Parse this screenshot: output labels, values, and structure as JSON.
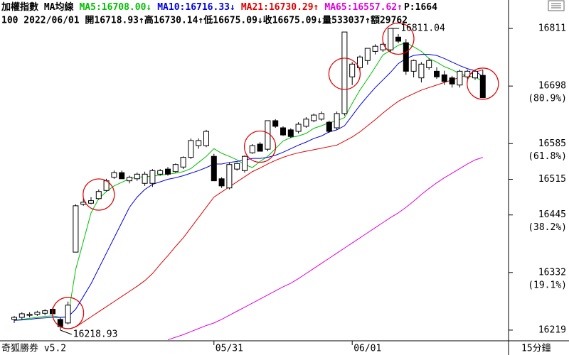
{
  "chart_data": {
    "type": "candlestick",
    "legend_title": "加權指數 MA均線",
    "header_extra": "P:1664",
    "quote_line": "100 2022/06/01 開16718.93↑高16730.14↑低16675.09↓收16675.09↓量533037↑額29762",
    "footer_left": "奇狐勝券 v5.2",
    "timeframe": "15分鐘",
    "categories": [
      null,
      null,
      null,
      null,
      null,
      null,
      null,
      null,
      null,
      null,
      null,
      null,
      null,
      null,
      null,
      null,
      null,
      null,
      null,
      null,
      null,
      null,
      null,
      null,
      null,
      null,
      "05/31",
      null,
      null,
      null,
      null,
      null,
      null,
      null,
      null,
      null,
      null,
      null,
      null,
      null,
      null,
      null,
      null,
      null,
      "06/01",
      null,
      null,
      null,
      null,
      null,
      null,
      null,
      null,
      null,
      null,
      null,
      null,
      null,
      null,
      null,
      null,
      null
    ],
    "open": [
      16240,
      16244,
      16248,
      16250,
      16252,
      16260,
      16240,
      16233,
      16372,
      16466,
      16468,
      16477,
      16493,
      16519,
      16528,
      16512,
      16516,
      16507,
      16507,
      16525,
      16535,
      16530,
      16539,
      16558,
      16581,
      16581,
      16560,
      16516,
      16498,
      16535,
      16532,
      16567,
      16584,
      16574,
      16630,
      16616,
      16612,
      16609,
      16619,
      16630,
      16633,
      16627,
      16616,
      16644,
      16716,
      16734,
      16748,
      16766,
      16769,
      16769,
      16794,
      16783,
      16727,
      16714,
      16734,
      16727,
      16720,
      16714,
      16700,
      16716,
      16714,
      16718.93
    ],
    "high": [
      16247,
      16254,
      16254,
      16257,
      16260,
      16263,
      16244,
      16275,
      16466,
      16477,
      16480,
      16495,
      16516,
      16532,
      16532,
      16522,
      16528,
      16530,
      16535,
      16535,
      16539,
      16546,
      16560,
      16595,
      16595,
      16612,
      16565,
      16519,
      16548,
      16548,
      16562,
      16584,
      16588,
      16630,
      16633,
      16619,
      16615,
      16627,
      16637,
      16644,
      16648,
      16630,
      16648,
      16804,
      16745,
      16758,
      16772,
      16780,
      16785,
      16811.04,
      16800,
      16790,
      16750,
      16745,
      16752,
      16735,
      16728,
      16718,
      16730,
      16730,
      16730,
      16730.14
    ],
    "low": [
      16233,
      16240,
      16244,
      16247,
      16248,
      16251,
      16218.93,
      16230,
      16372,
      16463,
      16466,
      16475,
      16491,
      16516,
      16516,
      16507,
      16512,
      16502,
      16500,
      16522,
      16522,
      16528,
      16535,
      16555,
      16575,
      16578,
      16512,
      16498,
      16495,
      16532,
      16528,
      16565,
      16570,
      16570,
      16616,
      16600,
      16596,
      16605,
      16616,
      16627,
      16630,
      16606,
      16612,
      16640,
      16700,
      16727,
      16740,
      16760,
      16765,
      16765,
      16782,
      16720,
      16715,
      16705,
      16730,
      16712,
      16700,
      16695,
      16695,
      16712,
      16710,
      16675.09
    ],
    "close": [
      16244,
      16251,
      16250,
      16254,
      16257,
      16251,
      16226,
      16268,
      16463,
      16470,
      16473,
      16491,
      16512,
      16528,
      16516,
      16519,
      16525,
      16525,
      16532,
      16532,
      16525,
      16544,
      16558,
      16591,
      16591,
      16609,
      16512,
      16502,
      16544,
      16546,
      16560,
      16581,
      16570,
      16630,
      16619,
      16602,
      16599,
      16623,
      16633,
      16641,
      16644,
      16609,
      16644,
      16804,
      16741,
      16755,
      16772,
      16776,
      16780,
      16811,
      16786,
      16727,
      16748,
      16741,
      16748,
      16716,
      16707,
      16702,
      16727,
      16727,
      16727,
      16675.09
    ],
    "up_color": "#ffffff",
    "down_color": "#000000",
    "series": [
      {
        "name": "MA5:16708.00↓",
        "color": "#00c000",
        "values": [
          16238,
          16240,
          16242,
          16244,
          16246,
          16247,
          16244,
          16245,
          16338,
          16393,
          16449,
          16477,
          16491,
          16502,
          16509,
          16516,
          16519,
          16520,
          16521,
          16523,
          16525,
          16527,
          16530,
          16536,
          16548,
          16560,
          16575,
          16566,
          16560,
          16553,
          16544,
          16538,
          16550,
          16560,
          16575,
          16590,
          16597,
          16600,
          16605,
          16615,
          16620,
          16626,
          16630,
          16636,
          16664,
          16690,
          16712,
          16735,
          16759,
          16768,
          16778,
          16783,
          16775,
          16766,
          16752,
          16745,
          16736,
          16730,
          16722,
          16718,
          16715,
          16708
        ]
      },
      {
        "name": "MA10:16716.33↓",
        "color": "#0000e0",
        "values": [
          16238,
          16239,
          16240,
          16242,
          16243,
          16244,
          16244,
          16245,
          16260,
          16285,
          16310,
          16340,
          16370,
          16400,
          16430,
          16460,
          16480,
          16495,
          16505,
          16510,
          16515,
          16518,
          16522,
          16527,
          16532,
          16538,
          16545,
          16545,
          16548,
          16550,
          16553,
          16556,
          16556,
          16558,
          16562,
          16568,
          16575,
          16582,
          16588,
          16595,
          16600,
          16608,
          16612,
          16620,
          16640,
          16660,
          16678,
          16695,
          16710,
          16725,
          16742,
          16752,
          16758,
          16760,
          16760,
          16758,
          16752,
          16745,
          16738,
          16732,
          16728,
          16716
        ]
      },
      {
        "name": "MA21:16730.29↑",
        "color": "#e00000",
        "values": [
          null,
          null,
          null,
          null,
          null,
          null,
          null,
          null,
          16225,
          16235,
          16245,
          16255,
          16265,
          16275,
          16285,
          16295,
          16305,
          16316,
          16330,
          16348,
          16365,
          16383,
          16400,
          16420,
          16440,
          16460,
          16480,
          16490,
          16500,
          16510,
          16520,
          16530,
          16537,
          16545,
          16552,
          16558,
          16563,
          16567,
          16570,
          16573,
          16576,
          16579,
          16582,
          16590,
          16598,
          16608,
          16620,
          16632,
          16645,
          16657,
          16668,
          16676,
          16683,
          16690,
          16695,
          16700,
          16705,
          16710,
          16715,
          16720,
          16725,
          16730
        ]
      },
      {
        "name": "MA65:16557.62↑",
        "color": "#e000e0",
        "values": [
          null,
          null,
          null,
          null,
          null,
          null,
          null,
          null,
          null,
          null,
          null,
          null,
          null,
          null,
          null,
          null,
          null,
          null,
          null,
          null,
          16200,
          16205,
          16210,
          16216,
          16222,
          16228,
          16233,
          16240,
          16248,
          16256,
          16264,
          16272,
          16280,
          16288,
          16296,
          16304,
          16311,
          16320,
          16330,
          16340,
          16350,
          16360,
          16370,
          16380,
          16390,
          16400,
          16410,
          16420,
          16430,
          16440,
          16449,
          16460,
          16472,
          16485,
          16497,
          16508,
          16518,
          16527,
          16536,
          16545,
          16553,
          16558
        ]
      }
    ],
    "ylim": [
      16198,
      16832
    ],
    "yticks": [
      16811,
      16698,
      16585,
      16515,
      16445,
      16332,
      16219
    ],
    "fib_labels": [
      {
        "value": 16698,
        "label": "(80.9%)"
      },
      {
        "value": 16585,
        "label": "(61.8%)"
      },
      {
        "value": 16445,
        "label": "(38.2%)"
      },
      {
        "value": 16332,
        "label": "(19.1%)"
      }
    ],
    "signals": [
      7,
      11,
      32,
      43,
      50,
      61
    ],
    "signal_color": "#e00000"
  }
}
